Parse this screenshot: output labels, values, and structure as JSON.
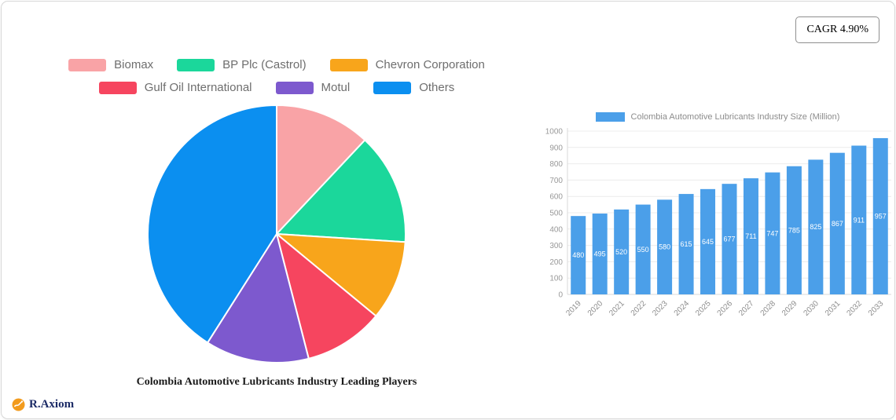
{
  "cagr_badge": {
    "label": "CAGR 4.90%"
  },
  "logo_text": "R.Axiom",
  "chart_data": [
    {
      "type": "pie",
      "title": "Colombia Automotive Lubricants Industry Leading Players",
      "labels": [
        "Biomax",
        "BP Plc (Castrol)",
        "Chevron Corporation",
        "Gulf Oil International",
        "Motul",
        "Others"
      ],
      "values": [
        12,
        14,
        10,
        10,
        13,
        41
      ],
      "note": "values are percent shares estimated from slice angles",
      "colors": [
        "#F9A3A6",
        "#1BD79B",
        "#F8A51B",
        "#F6455F",
        "#7D59CE",
        "#0B8FF0"
      ],
      "legend_position": "top",
      "start_angle": "12 o'clock, clockwise"
    },
    {
      "type": "bar",
      "legend": "Colombia Automotive Lubricants Industry Size (Million)",
      "categories": [
        "2019",
        "2020",
        "2021",
        "2022",
        "2023",
        "2024",
        "2025",
        "2026",
        "2027",
        "2028",
        "2029",
        "2030",
        "2031",
        "2032",
        "2033"
      ],
      "values": [
        480,
        495,
        520,
        550,
        580,
        615,
        645,
        677,
        711,
        747,
        785,
        825,
        867,
        911,
        957
      ],
      "ylim": [
        0,
        1000
      ],
      "ytick_step": 100,
      "bar_color": "#4B9FE9",
      "grid": true,
      "value_labels": "white, inside bars",
      "legend_position": "top",
      "xlabel_rotation_deg": -45
    }
  ]
}
